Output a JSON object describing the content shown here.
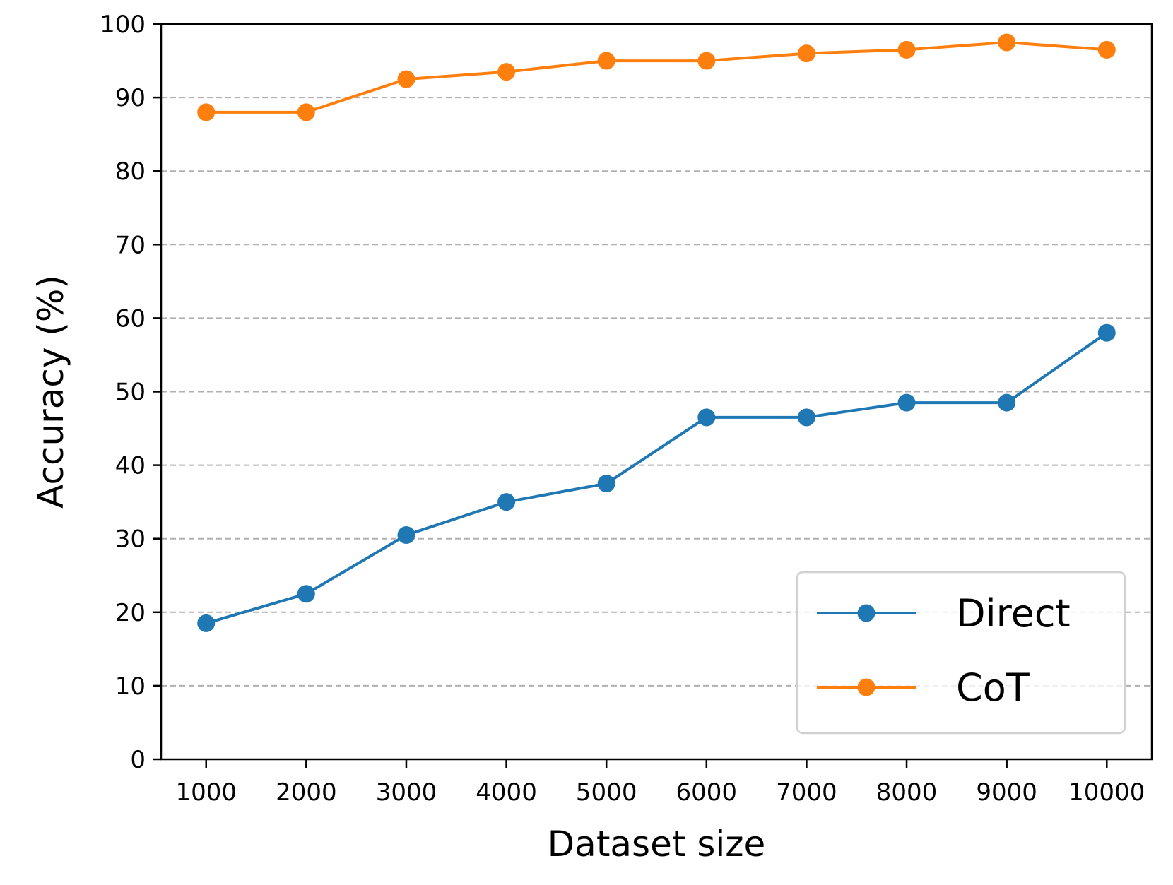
{
  "chart_data": {
    "type": "line",
    "title": "",
    "xlabel": "Dataset size",
    "ylabel": "Accuracy (%)",
    "x": [
      1000,
      2000,
      3000,
      4000,
      5000,
      6000,
      7000,
      8000,
      9000,
      10000
    ],
    "x_tick_labels": [
      "1000",
      "2000",
      "3000",
      "4000",
      "5000",
      "6000",
      "7000",
      "8000",
      "9000",
      "10000"
    ],
    "xlim": [
      550,
      10450
    ],
    "ylim": [
      0,
      100
    ],
    "y_ticks": [
      0,
      10,
      20,
      30,
      40,
      50,
      60,
      70,
      80,
      90,
      100
    ],
    "y_tick_labels": [
      "0",
      "10",
      "20",
      "30",
      "40",
      "50",
      "60",
      "70",
      "80",
      "90",
      "100"
    ],
    "grid": "horizontal dashed",
    "legend_position": "lower right",
    "series": [
      {
        "name": "Direct",
        "color": "#1f77b4",
        "values": [
          18.5,
          22.5,
          30.5,
          35,
          37.5,
          46.5,
          46.5,
          48.5,
          48.5,
          58
        ]
      },
      {
        "name": "CoT",
        "color": "#ff7f0e",
        "values": [
          88,
          88,
          92.5,
          93.5,
          95,
          95,
          96,
          96.5,
          97.5,
          96.5
        ]
      }
    ]
  }
}
